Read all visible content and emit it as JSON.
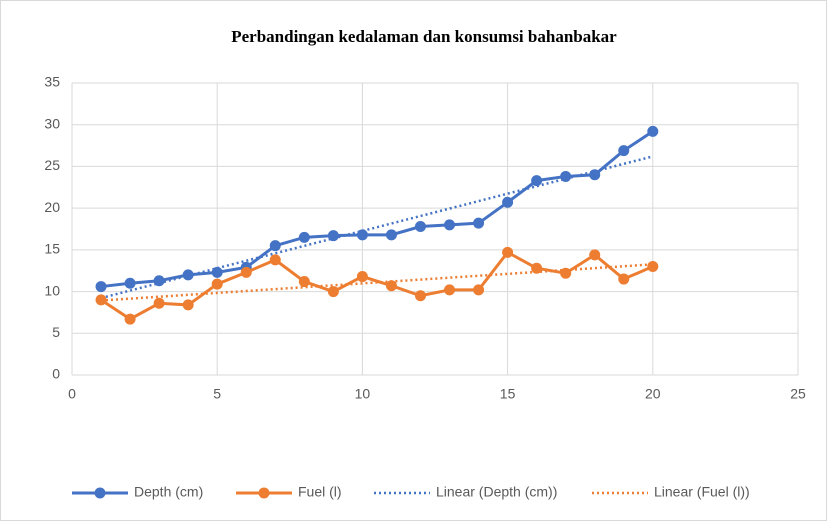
{
  "chart_data": {
    "type": "line",
    "title": "Perbandingan kedalaman dan konsumsi bahanbakar",
    "x": [
      1,
      2,
      3,
      4,
      5,
      6,
      7,
      8,
      9,
      10,
      11,
      12,
      13,
      14,
      15,
      16,
      17,
      18,
      19,
      20
    ],
    "series": [
      {
        "name": "Depth (cm)",
        "color": "#4472c4",
        "values": [
          10.6,
          11.0,
          11.3,
          12.0,
          12.3,
          12.9,
          15.5,
          16.5,
          16.7,
          16.8,
          16.8,
          17.8,
          18.0,
          18.2,
          20.7,
          23.3,
          23.8,
          24.0,
          26.9,
          29.2
        ],
        "trendline": {
          "type": "linear",
          "name": "Linear (Depth (cm))"
        }
      },
      {
        "name": "Fuel (l)",
        "color": "#ed7d31",
        "values": [
          9.0,
          6.7,
          8.6,
          8.4,
          10.9,
          12.3,
          13.8,
          11.2,
          10.0,
          11.8,
          10.7,
          9.5,
          10.2,
          10.2,
          14.7,
          12.8,
          12.2,
          14.4,
          11.5,
          13.0
        ],
        "trendline": {
          "type": "linear",
          "name": "Linear (Fuel (l))"
        }
      }
    ],
    "xlim": [
      0,
      25
    ],
    "xticks": [
      0,
      5,
      10,
      15,
      20,
      25
    ],
    "ylim": [
      0,
      35
    ],
    "yticks": [
      0,
      5,
      10,
      15,
      20,
      25,
      30,
      35
    ],
    "grid": true,
    "legend": "bottom"
  }
}
